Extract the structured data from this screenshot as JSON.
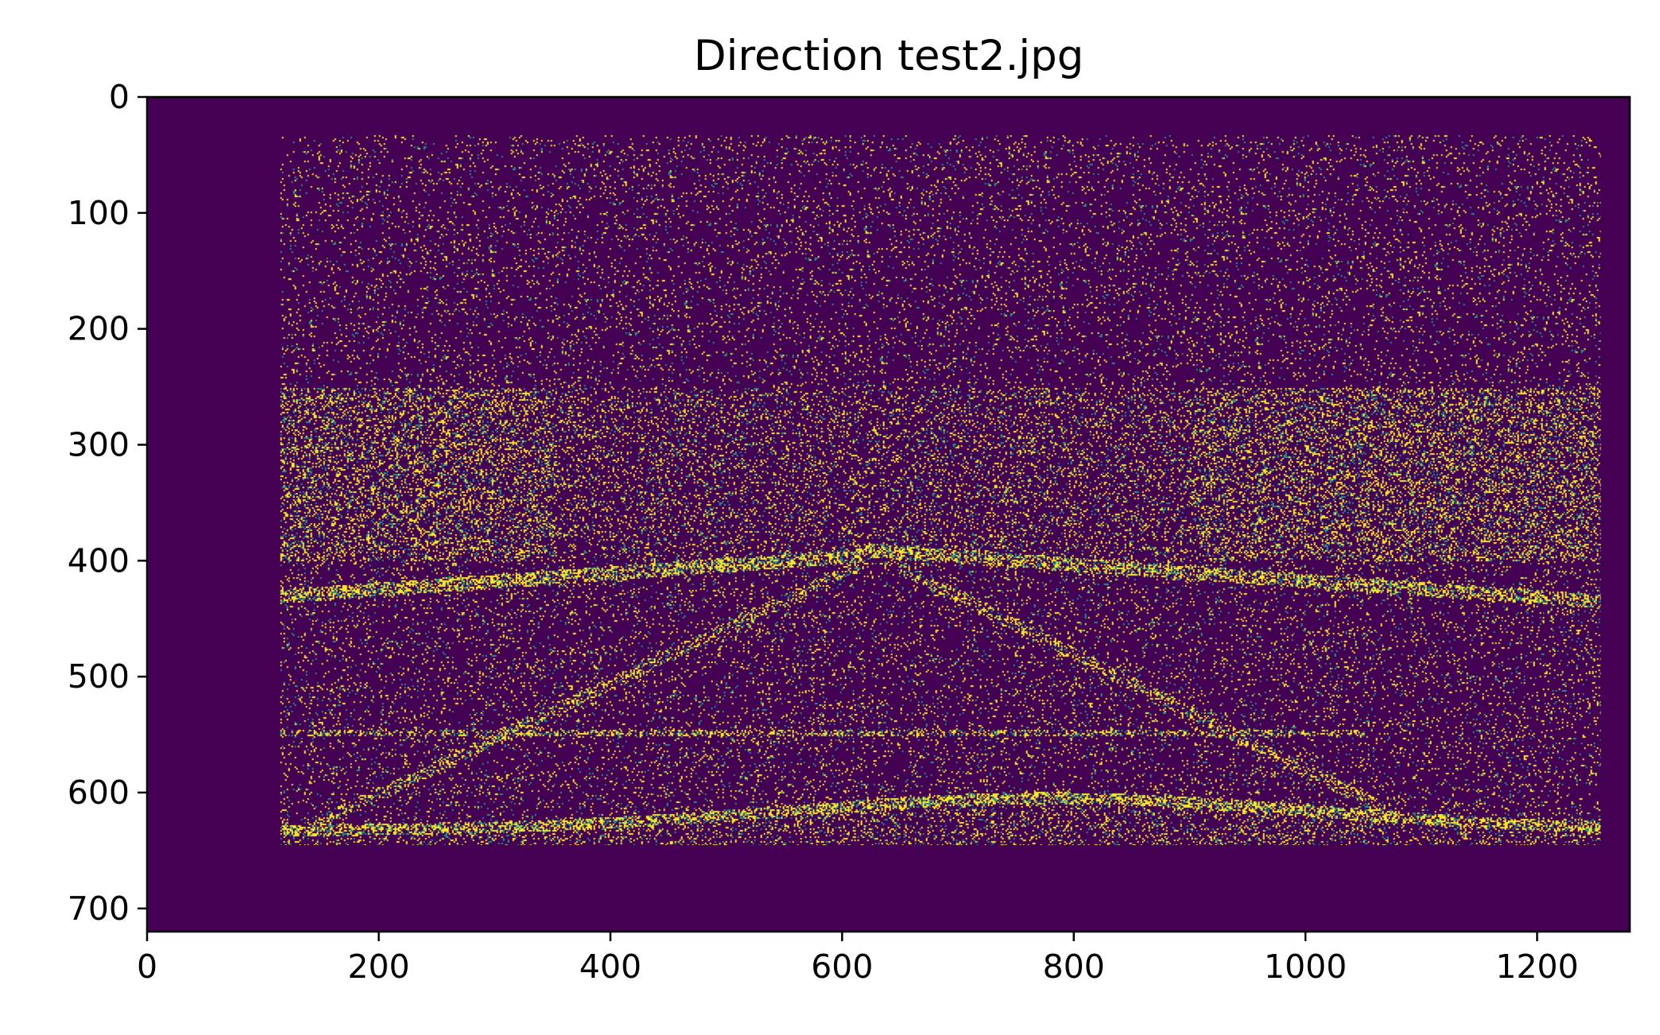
{
  "chart_data": {
    "type": "heatmap",
    "title": "Direction test2.jpg",
    "xlabel": "",
    "ylabel": "",
    "xlim": [
      0,
      1280
    ],
    "ylim": [
      720,
      0
    ],
    "xticks": [
      0,
      200,
      400,
      600,
      800,
      1000,
      1200
    ],
    "yticks": [
      0,
      100,
      200,
      300,
      400,
      500,
      600,
      700
    ],
    "grid": false,
    "legend": "none",
    "colormap": "viridis",
    "colors": {
      "background": "#440154",
      "high": "#fde725",
      "mid": "#21918c"
    },
    "content_region": {
      "x": [
        115,
        1255
      ],
      "y": [
        33,
        645
      ]
    }
  }
}
